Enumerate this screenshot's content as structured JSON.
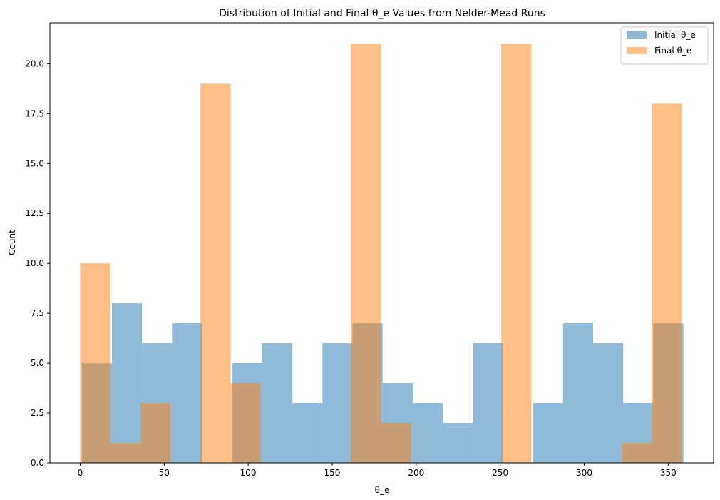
{
  "chart_data": {
    "type": "bar",
    "title": "Distribution of Initial and Final θ_e Values from Nelder-Mead Runs",
    "xlabel": "θ_e",
    "ylabel": "Count",
    "xlim": [
      -18,
      377
    ],
    "ylim": [
      0,
      22.05
    ],
    "xticks": [
      0,
      50,
      100,
      150,
      200,
      250,
      300,
      350
    ],
    "xtick_labels": [
      "0",
      "50",
      "100",
      "150",
      "200",
      "250",
      "300",
      "350"
    ],
    "yticks": [
      0,
      2.5,
      5,
      7.5,
      10,
      12.5,
      15,
      17.5,
      20
    ],
    "ytick_labels": [
      "0.0",
      "2.5",
      "5.0",
      "7.5",
      "10.0",
      "12.5",
      "15.0",
      "17.5",
      "20.0"
    ],
    "grid": false,
    "legend_position": "top-right",
    "series": [
      {
        "name": "Initial θ_e",
        "color": "#1f77b4",
        "alpha": 0.5,
        "bin_edges": [
          1.0,
          18.9,
          36.8,
          54.7,
          72.6,
          90.5,
          108.4,
          126.3,
          144.2,
          162.1,
          180.0,
          197.9,
          215.8,
          233.7,
          251.6,
          269.5,
          287.4,
          305.3,
          323.2,
          341.1,
          359.0
        ],
        "values": [
          5,
          8,
          6,
          7,
          0,
          5,
          6,
          3,
          6,
          7,
          4,
          3,
          2,
          6,
          0,
          3,
          7,
          6,
          3,
          7
        ]
      },
      {
        "name": "Final θ_e",
        "color": "#ff7f0e",
        "alpha": 0.5,
        "bin_edges": [
          0.0,
          17.9,
          35.8,
          53.7,
          71.6,
          89.5,
          107.4,
          125.3,
          143.2,
          161.1,
          179.0,
          196.9,
          214.8,
          232.7,
          250.6,
          268.5,
          286.4,
          304.3,
          322.2,
          340.1,
          358.0
        ],
        "values": [
          10,
          1,
          3,
          0,
          19,
          4,
          0,
          0,
          0,
          21,
          2,
          0,
          0,
          0,
          21,
          0,
          0,
          0,
          1,
          18
        ]
      }
    ]
  }
}
